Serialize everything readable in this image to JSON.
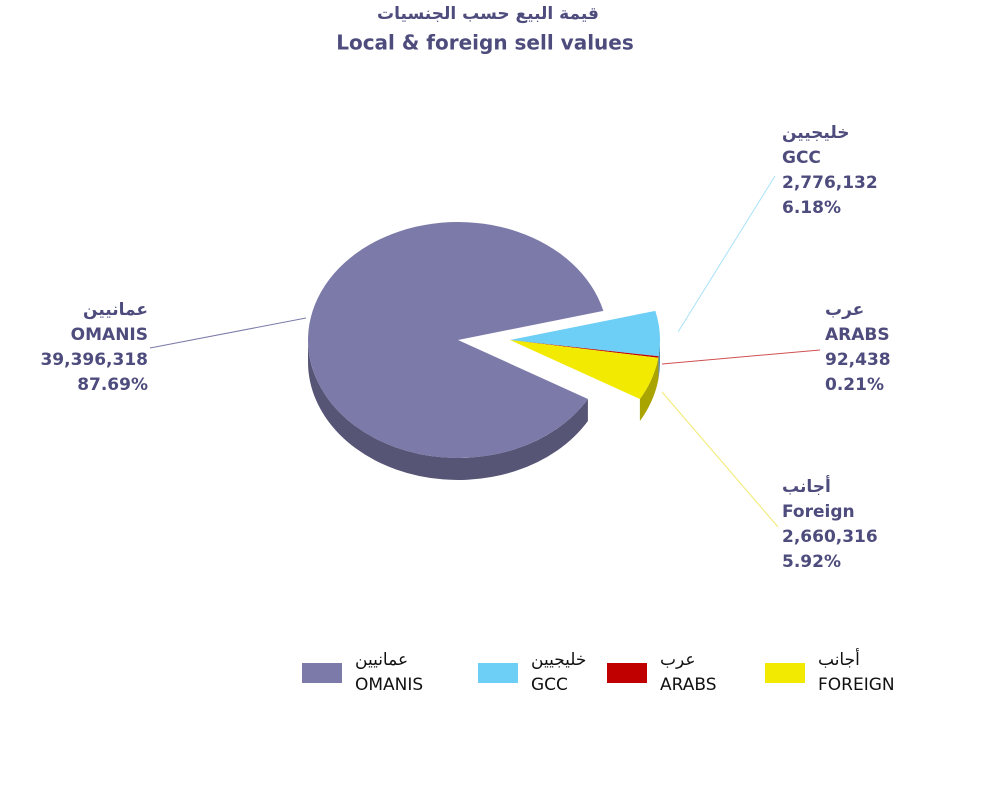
{
  "chart_data": {
    "type": "pie",
    "title_arabic": "قيمة البيع حسب الجنسيات",
    "title": "Local & foreign sell values",
    "categories": [
      "OMANIS",
      "GCC",
      "ARABS",
      "Foreign"
    ],
    "arabic_labels": [
      "عمانيين",
      "خليجيين",
      "عرب",
      "أجانب"
    ],
    "legend_labels": [
      "OMANIS",
      "GCC",
      "ARABS",
      "FOREIGN"
    ],
    "values": [
      39396318,
      2776132,
      92438,
      2660316
    ],
    "value_labels": [
      "39,396,318",
      "2,776,132",
      "92,438",
      "2,660,316"
    ],
    "percent_labels": [
      "87.69%",
      "6.18%",
      "0.21%",
      "5.92%"
    ],
    "colors": [
      "#7b7aa8",
      "#6dcff6",
      "#c00000",
      "#f2ea00"
    ],
    "legend": "bottom"
  }
}
